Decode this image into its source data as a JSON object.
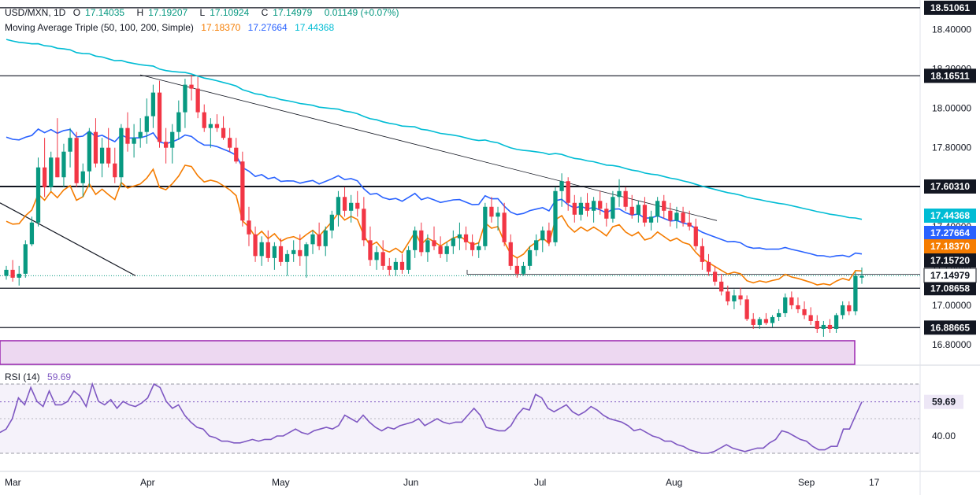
{
  "header": {
    "symbol": "USD/MXN, 1D",
    "open_label": "O",
    "open": "17.14035",
    "high_label": "H",
    "high": "17.19207",
    "low_label": "L",
    "low": "17.10924",
    "close_label": "C",
    "close": "17.14979",
    "change": "0.01149 (+0.07%)",
    "ma_title": "Moving Average Triple (50, 100, 200, Simple)",
    "ma_values": [
      "17.18370",
      "17.27664",
      "17.44368"
    ],
    "rsi_title": "RSI (14)",
    "rsi_value": "59.69"
  },
  "colors": {
    "up": "#089981",
    "down": "#f23645",
    "ma50": "#f57c00",
    "ma100": "#2962ff",
    "ma200": "#00bcd4",
    "rsi": "#7e57c2",
    "band": "#7e57c2",
    "zone": "#9c27b0"
  },
  "chart_data": [
    {
      "type": "candlestick",
      "title": "USD/MXN, 1D",
      "ylim": [
        16.7,
        18.55
      ],
      "y_ticks": [
        16.8,
        17.0,
        17.2,
        17.4,
        17.6,
        17.8,
        18.0,
        18.2,
        18.4
      ],
      "y_tick_labels": [
        "16.80000",
        "17.00000",
        "17.20000",
        "17.40000",
        "17.60000",
        "17.80000",
        "18.00000",
        "18.20000",
        "18.40000"
      ],
      "x_tick_labels": [
        "Mar",
        "Apr",
        "May",
        "Jun",
        "Jul",
        "Aug",
        "Sep",
        "17"
      ],
      "candles_ohlc": [
        [
          17.15,
          17.2,
          17.13,
          17.18
        ],
        [
          17.18,
          17.23,
          17.12,
          17.14
        ],
        [
          17.14,
          17.2,
          17.1,
          17.16
        ],
        [
          17.16,
          17.33,
          17.14,
          17.31
        ],
        [
          17.31,
          17.45,
          17.3,
          17.42
        ],
        [
          17.42,
          17.75,
          17.4,
          17.7
        ],
        [
          17.7,
          17.85,
          17.55,
          17.6
        ],
        [
          17.6,
          17.78,
          17.58,
          17.75
        ],
        [
          17.75,
          17.95,
          17.65,
          17.65
        ],
        [
          17.65,
          17.82,
          17.6,
          17.78
        ],
        [
          17.78,
          17.9,
          17.7,
          17.85
        ],
        [
          17.85,
          17.88,
          17.6,
          17.62
        ],
        [
          17.62,
          17.72,
          17.55,
          17.68
        ],
        [
          17.68,
          17.9,
          17.6,
          17.88
        ],
        [
          17.88,
          17.95,
          17.7,
          17.72
        ],
        [
          17.72,
          17.85,
          17.65,
          17.8
        ],
        [
          17.8,
          17.9,
          17.7,
          17.72
        ],
        [
          17.72,
          17.8,
          17.62,
          17.65
        ],
        [
          17.65,
          17.92,
          17.6,
          17.9
        ],
        [
          17.9,
          17.98,
          17.78,
          17.82
        ],
        [
          17.82,
          17.92,
          17.75,
          17.85
        ],
        [
          17.85,
          17.95,
          17.8,
          17.88
        ],
        [
          17.88,
          18.05,
          17.82,
          17.96
        ],
        [
          17.96,
          18.12,
          17.9,
          18.08
        ],
        [
          18.08,
          18.14,
          17.8,
          17.83
        ],
        [
          17.83,
          17.9,
          17.72,
          17.8
        ],
        [
          17.8,
          17.92,
          17.72,
          17.88
        ],
        [
          17.88,
          18.04,
          17.84,
          17.98
        ],
        [
          17.98,
          18.15,
          17.9,
          18.12
        ],
        [
          18.12,
          18.17,
          18.04,
          18.1
        ],
        [
          18.1,
          18.16,
          17.95,
          17.98
        ],
        [
          17.98,
          18.02,
          17.88,
          17.9
        ],
        [
          17.9,
          17.95,
          17.8,
          17.92
        ],
        [
          17.92,
          17.97,
          17.88,
          17.9
        ],
        [
          17.9,
          17.96,
          17.84,
          17.85
        ],
        [
          17.85,
          17.9,
          17.78,
          17.8
        ],
        [
          17.8,
          17.85,
          17.72,
          17.73
        ],
        [
          17.73,
          17.78,
          17.4,
          17.43
        ],
        [
          17.43,
          17.5,
          17.3,
          17.36
        ],
        [
          17.36,
          17.4,
          17.22,
          17.25
        ],
        [
          17.25,
          17.35,
          17.2,
          17.32
        ],
        [
          17.32,
          17.38,
          17.22,
          17.24
        ],
        [
          17.24,
          17.32,
          17.18,
          17.3
        ],
        [
          17.3,
          17.34,
          17.2,
          17.22
        ],
        [
          17.22,
          17.28,
          17.15,
          17.26
        ],
        [
          17.26,
          17.33,
          17.22,
          17.28
        ],
        [
          17.28,
          17.36,
          17.2,
          17.25
        ],
        [
          17.25,
          17.32,
          17.14,
          17.31
        ],
        [
          17.31,
          17.38,
          17.26,
          17.36
        ],
        [
          17.36,
          17.42,
          17.28,
          17.3
        ],
        [
          17.3,
          17.4,
          17.25,
          17.38
        ],
        [
          17.38,
          17.48,
          17.34,
          17.46
        ],
        [
          17.46,
          17.58,
          17.4,
          17.55
        ],
        [
          17.55,
          17.6,
          17.45,
          17.48
        ],
        [
          17.48,
          17.56,
          17.42,
          17.52
        ],
        [
          17.52,
          17.58,
          17.45,
          17.49
        ],
        [
          17.49,
          17.55,
          17.3,
          17.33
        ],
        [
          17.33,
          17.4,
          17.2,
          17.23
        ],
        [
          17.23,
          17.3,
          17.18,
          17.27
        ],
        [
          17.27,
          17.33,
          17.18,
          17.2
        ],
        [
          17.2,
          17.24,
          17.15,
          17.18
        ],
        [
          17.18,
          17.24,
          17.15,
          17.22
        ],
        [
          17.22,
          17.26,
          17.16,
          17.18
        ],
        [
          17.18,
          17.3,
          17.16,
          17.28
        ],
        [
          17.28,
          17.4,
          17.24,
          17.38
        ],
        [
          17.38,
          17.42,
          17.25,
          17.27
        ],
        [
          17.27,
          17.36,
          17.22,
          17.33
        ],
        [
          17.33,
          17.4,
          17.28,
          17.3
        ],
        [
          17.3,
          17.35,
          17.24,
          17.26
        ],
        [
          17.26,
          17.32,
          17.22,
          17.3
        ],
        [
          17.3,
          17.38,
          17.26,
          17.34
        ],
        [
          17.34,
          17.42,
          17.28,
          17.36
        ],
        [
          17.36,
          17.4,
          17.28,
          17.32
        ],
        [
          17.32,
          17.36,
          17.25,
          17.28
        ],
        [
          17.28,
          17.32,
          17.24,
          17.3
        ],
        [
          17.3,
          17.52,
          17.28,
          17.5
        ],
        [
          17.5,
          17.55,
          17.42,
          17.45
        ],
        [
          17.45,
          17.5,
          17.38,
          17.47
        ],
        [
          17.47,
          17.52,
          17.3,
          17.32
        ],
        [
          17.32,
          17.36,
          17.18,
          17.2
        ],
        [
          17.2,
          17.24,
          17.14,
          17.16
        ],
        [
          17.16,
          17.22,
          17.15,
          17.2
        ],
        [
          17.2,
          17.3,
          17.18,
          17.28
        ],
        [
          17.28,
          17.36,
          17.25,
          17.33
        ],
        [
          17.33,
          17.4,
          17.27,
          17.38
        ],
        [
          17.38,
          17.42,
          17.3,
          17.32
        ],
        [
          17.32,
          17.6,
          17.3,
          17.58
        ],
        [
          17.58,
          17.67,
          17.5,
          17.63
        ],
        [
          17.63,
          17.65,
          17.48,
          17.52
        ],
        [
          17.52,
          17.56,
          17.42,
          17.46
        ],
        [
          17.46,
          17.55,
          17.43,
          17.52
        ],
        [
          17.52,
          17.57,
          17.45,
          17.48
        ],
        [
          17.48,
          17.55,
          17.42,
          17.53
        ],
        [
          17.53,
          17.58,
          17.46,
          17.49
        ],
        [
          17.49,
          17.52,
          17.4,
          17.44
        ],
        [
          17.44,
          17.58,
          17.42,
          17.55
        ],
        [
          17.55,
          17.64,
          17.5,
          17.58
        ],
        [
          17.58,
          17.6,
          17.48,
          17.5
        ],
        [
          17.5,
          17.56,
          17.44,
          17.46
        ],
        [
          17.46,
          17.53,
          17.42,
          17.51
        ],
        [
          17.51,
          17.55,
          17.4,
          17.42
        ],
        [
          17.42,
          17.48,
          17.38,
          17.45
        ],
        [
          17.45,
          17.55,
          17.42,
          17.53
        ],
        [
          17.53,
          17.56,
          17.44,
          17.48
        ],
        [
          17.48,
          17.52,
          17.4,
          17.43
        ],
        [
          17.43,
          17.5,
          17.39,
          17.47
        ],
        [
          17.47,
          17.5,
          17.4,
          17.42
        ],
        [
          17.42,
          17.48,
          17.38,
          17.4
        ],
        [
          17.4,
          17.44,
          17.28,
          17.3
        ],
        [
          17.3,
          17.34,
          17.18,
          17.22
        ],
        [
          17.22,
          17.26,
          17.15,
          17.17
        ],
        [
          17.17,
          17.2,
          17.1,
          17.12
        ],
        [
          17.12,
          17.16,
          17.05,
          17.07
        ],
        [
          17.07,
          17.1,
          17.0,
          17.02
        ],
        [
          17.02,
          17.08,
          16.98,
          17.05
        ],
        [
          17.05,
          17.09,
          17.0,
          17.03
        ],
        [
          17.03,
          17.05,
          16.92,
          16.93
        ],
        [
          16.93,
          16.96,
          16.88,
          16.9
        ],
        [
          16.9,
          16.94,
          16.88,
          16.93
        ],
        [
          16.93,
          16.96,
          16.9,
          16.91
        ],
        [
          16.91,
          16.95,
          16.89,
          16.94
        ],
        [
          16.94,
          16.98,
          16.92,
          16.96
        ],
        [
          16.96,
          17.06,
          16.94,
          17.04
        ],
        [
          17.04,
          17.07,
          16.98,
          17.0
        ],
        [
          17.0,
          17.04,
          16.96,
          16.98
        ],
        [
          16.98,
          17.02,
          16.93,
          16.95
        ],
        [
          16.95,
          16.99,
          16.9,
          16.92
        ],
        [
          16.92,
          16.95,
          16.86,
          16.88
        ],
        [
          16.88,
          16.92,
          16.84,
          16.9
        ],
        [
          16.9,
          16.93,
          16.86,
          16.88
        ],
        [
          16.88,
          16.96,
          16.86,
          16.95
        ],
        [
          16.95,
          17.02,
          16.93,
          17.0
        ],
        [
          17.0,
          17.02,
          16.95,
          16.97
        ],
        [
          16.97,
          17.17,
          16.95,
          17.15
        ],
        [
          17.14035,
          17.19207,
          17.10924,
          17.14979
        ]
      ],
      "ma_series": [
        {
          "name": "50",
          "start_end": [
            17.52,
            17.1837
          ]
        },
        {
          "name": "100",
          "start_end": [
            17.95,
            17.27664
          ]
        },
        {
          "name": "200",
          "start_end": [
            18.38,
            17.44368
          ]
        }
      ],
      "horizontal_levels": [
        18.51061,
        18.16511,
        17.6031,
        17.08658,
        16.88665
      ],
      "level_labels": [
        "18.51061",
        "18.16511",
        "17.60310",
        "17.08658",
        "16.88665"
      ],
      "price_labels": [
        "17.44368",
        "17.27664",
        "17.18370",
        "17.15720",
        "17.14979"
      ],
      "trendline": {
        "from": [
          18.17,
          17.52
        ],
        "description": "descending resistance"
      }
    },
    {
      "type": "line",
      "title": "RSI (14)",
      "ylim": [
        20,
        80
      ],
      "y_tick_labels": [
        "40.00"
      ],
      "band": [
        30,
        70
      ],
      "levels": [
        50,
        60
      ],
      "last_value": 59.69,
      "values": [
        42,
        44,
        50,
        62,
        58,
        68,
        60,
        57,
        66,
        58,
        58,
        60,
        66,
        63,
        57,
        70,
        60,
        58,
        61,
        56,
        60,
        58,
        57,
        59,
        62,
        70,
        68,
        60,
        56,
        58,
        52,
        48,
        45,
        44,
        40,
        39,
        37,
        37,
        36,
        36,
        37,
        38,
        37,
        38,
        38,
        40,
        40,
        42,
        44,
        42,
        41,
        43,
        44,
        45,
        44,
        46,
        52,
        50,
        48,
        52,
        48,
        45,
        43,
        45,
        44,
        46,
        47,
        48,
        50,
        46,
        48,
        50,
        48,
        47,
        48,
        48,
        52,
        56,
        52,
        45,
        44,
        43,
        43,
        46,
        52,
        56,
        55,
        64,
        62,
        56,
        54,
        56,
        58,
        54,
        52,
        54,
        57,
        55,
        52,
        50,
        49,
        48,
        46,
        43,
        44,
        42,
        40,
        39,
        37,
        37,
        35,
        34,
        32,
        31,
        30,
        30,
        31,
        33,
        35,
        33,
        32,
        31,
        32,
        33,
        33,
        36,
        38,
        43,
        42,
        40,
        38,
        37,
        34,
        32,
        32,
        34,
        34,
        44,
        44,
        52,
        59.69
      ]
    }
  ]
}
